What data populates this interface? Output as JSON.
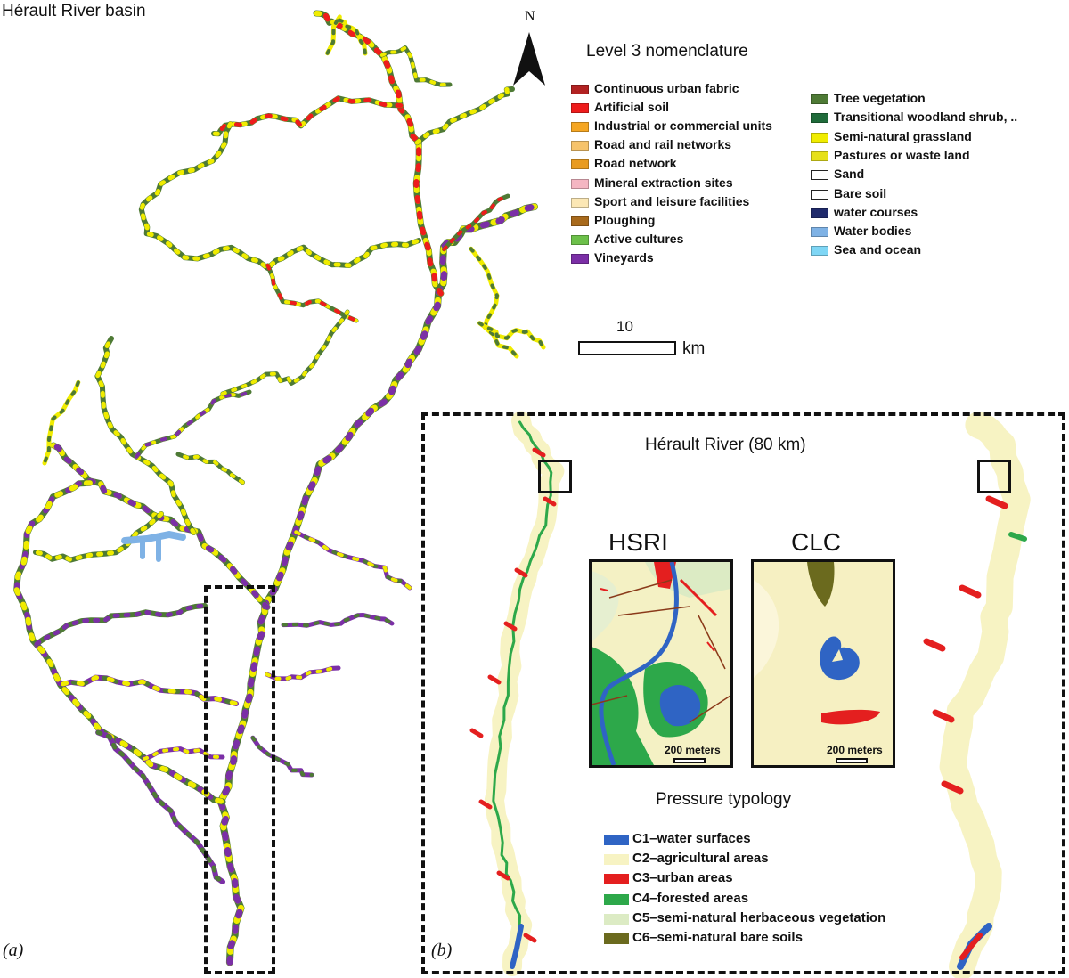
{
  "title": "Hérault River basin",
  "north_label": "N",
  "legend": {
    "title": "Level 3 nomenclature",
    "col1": [
      {
        "label": "Continuous urban fabric",
        "color": "#b22222"
      },
      {
        "label": "Artificial soil",
        "color": "#ee1c1c"
      },
      {
        "label": "Industrial or commercial units",
        "color": "#f5a623"
      },
      {
        "label": "Road and rail networks",
        "color": "#f6c36b"
      },
      {
        "label": "Road network",
        "color": "#e99b1f"
      },
      {
        "label": "Mineral extraction sites",
        "color": "#f4b6c2"
      },
      {
        "label": "Sport and leisure facilities",
        "color": "#fbe7b5"
      },
      {
        "label": "Ploughing",
        "color": "#a86a1c"
      },
      {
        "label": "Active cultures",
        "color": "#6cc04a"
      },
      {
        "label": "Vineyards",
        "color": "#7b2fa6"
      }
    ],
    "col2": [
      {
        "label": "Tree vegetation",
        "color": "#4e7a35"
      },
      {
        "label": "Transitional woodland shrub, ..",
        "color": "#1f6b3a"
      },
      {
        "label": "Semi-natural grassland",
        "color": "#f0ec00"
      },
      {
        "label": "Pastures or waste land",
        "color": "#e6e01a"
      },
      {
        "label": "Sand",
        "color": "#ffffff"
      },
      {
        "label": "Bare soil",
        "color": "#ffffff"
      },
      {
        "label": "water courses",
        "color": "#1f2a6b"
      },
      {
        "label": "Water bodies",
        "color": "#7fb2e5"
      },
      {
        "label": "Sea and ocean",
        "color": "#7fd6f5"
      }
    ]
  },
  "scale": {
    "value": "10",
    "unit": "km"
  },
  "panel_a_label": "(a)",
  "panel_b_label": "(b)",
  "panel_b": {
    "title": "Hérault River (80 km)",
    "inset_hsri": {
      "label": "HSRI",
      "scale_text": "200 meters"
    },
    "inset_clc": {
      "label": "CLC",
      "scale_text": "200 meters"
    },
    "pressure": {
      "title": "Pressure typology",
      "items": [
        {
          "label": "C1–water surfaces",
          "color": "#2f64c4"
        },
        {
          "label": "C2–agricultural areas",
          "color": "#f7f3c3"
        },
        {
          "label": "C3–urban areas",
          "color": "#e41f1f"
        },
        {
          "label": "C4–forested areas",
          "color": "#2da84a"
        },
        {
          "label": "C5–semi-natural herbaceous vegetation",
          "color": "#dcebc4"
        },
        {
          "label": "C6–semi-natural bare soils",
          "color": "#6b6a1e"
        }
      ]
    }
  }
}
